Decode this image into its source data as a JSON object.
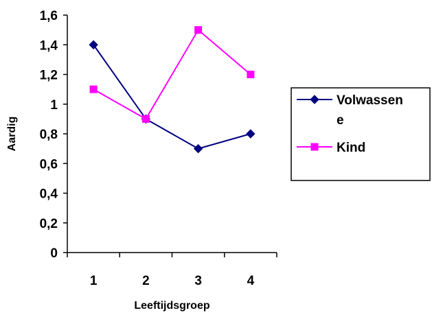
{
  "chart_data": {
    "type": "line",
    "title": "",
    "xlabel": "Leeftijdsgroep",
    "ylabel": "Aardig",
    "categories": [
      "1",
      "2",
      "3",
      "4"
    ],
    "ylim": [
      0,
      1.6
    ],
    "yticks": [
      "0",
      "0,2",
      "0,4",
      "0,6",
      "0,8",
      "1",
      "1,2",
      "1,4",
      "1,6"
    ],
    "grid": false,
    "legend_position": "right",
    "series": [
      {
        "name": "Volwassene",
        "legend_lines": [
          "Volwassen",
          "e"
        ],
        "marker": "diamond",
        "color": "#000080",
        "values": [
          1.4,
          0.9,
          0.7,
          0.8
        ]
      },
      {
        "name": "Kind",
        "legend_lines": [
          "Kind"
        ],
        "marker": "square",
        "color": "#FF00FF",
        "values": [
          1.1,
          0.9,
          1.5,
          1.2
        ]
      }
    ]
  }
}
